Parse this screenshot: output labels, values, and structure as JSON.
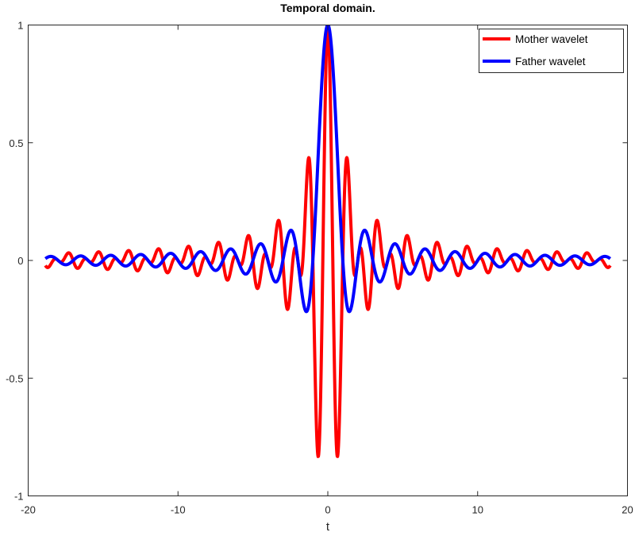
{
  "chart_data": {
    "type": "line",
    "title": "Temporal domain.",
    "xlabel": "t",
    "ylabel": "",
    "xlim": [
      -20,
      20
    ],
    "ylim": [
      -1,
      1
    ],
    "xticks": [
      -20,
      -10,
      0,
      10,
      20
    ],
    "xtick_labels": [
      "-20",
      "-10",
      "0",
      "10",
      "20"
    ],
    "yticks": [
      -1,
      -0.5,
      0,
      0.5,
      1
    ],
    "ytick_labels": [
      "-1",
      "-0.5",
      "0",
      "0.5",
      "1"
    ],
    "grid": false,
    "legend_position": "upper right",
    "t_range": [
      -18.85,
      18.85
    ],
    "series": [
      {
        "name": "Mother wavelet",
        "color": "#ff0000",
        "formula": "2*sinc(2t) - sinc(t)",
        "key_points": [
          {
            "t": 0,
            "y": 1.0
          },
          {
            "t": -0.66,
            "y": -0.85
          },
          {
            "t": 0.66,
            "y": -0.85
          },
          {
            "t": -1.3,
            "y": 0.45
          },
          {
            "t": 1.3,
            "y": 0.45
          },
          {
            "t": -2.0,
            "y": -0.21
          },
          {
            "t": 2.0,
            "y": -0.21
          },
          {
            "t": -3.3,
            "y": 0.17
          },
          {
            "t": 3.3,
            "y": 0.17
          }
        ]
      },
      {
        "name": "Father wavelet",
        "color": "#0000ff",
        "formula": "sinc(t) = sin(pi t)/(pi t)",
        "key_points": [
          {
            "t": 0,
            "y": 1.0
          },
          {
            "t": -1.43,
            "y": -0.22
          },
          {
            "t": 1.43,
            "y": -0.22
          },
          {
            "t": -2.46,
            "y": 0.13
          },
          {
            "t": 2.46,
            "y": 0.13
          },
          {
            "t": -3.47,
            "y": -0.09
          },
          {
            "t": 3.47,
            "y": -0.09
          }
        ]
      }
    ]
  },
  "legend": {
    "items": [
      {
        "label": "Mother wavelet",
        "color": "#ff0000"
      },
      {
        "label": "Father wavelet",
        "color": "#0000ff"
      }
    ]
  }
}
